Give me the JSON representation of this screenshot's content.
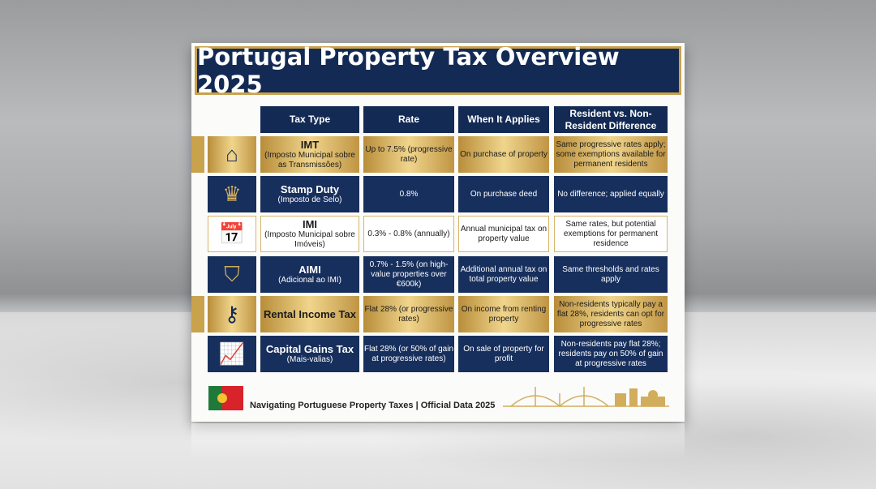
{
  "title": "Portugal Property Tax Overview 2025",
  "headers": [
    "Tax Type",
    "Rate",
    "When It Applies",
    "Resident vs. Non-Resident Difference"
  ],
  "rows": [
    {
      "style": "gold",
      "icon": "house-icon",
      "glyph": "⌂",
      "name": "IMT",
      "sub": "(Imposto Municipal sobre as Transmissões)",
      "rate": "Up to 7.5% (progressive rate)",
      "when": "On purchase of property",
      "diff": "Same progressive rates apply; some exemptions available for permanent residents"
    },
    {
      "style": "navy",
      "icon": "stamp-seal-icon",
      "glyph": "♛",
      "name": "Stamp Duty",
      "sub": "(Imposto de Selo)",
      "rate": "0.8%",
      "when": "On purchase deed",
      "diff": "No difference; applied equally"
    },
    {
      "style": "white",
      "icon": "calendar-check-icon",
      "glyph": "📅",
      "name": "IMI",
      "sub": "(Imposto Municipal sobre Imóveis)",
      "rate": "0.3% - 0.8% (annually)",
      "when": "Annual municipal tax on property value",
      "diff": "Same rates, but potential exemptions for permanent residence"
    },
    {
      "style": "navy",
      "icon": "shield-star-icon",
      "glyph": "⛉",
      "name": "AIMI",
      "sub": "(Adicional ao IMI)",
      "rate": "0.7% - 1.5% (on high-value properties over €600k)",
      "when": "Additional annual tax on total property value",
      "diff": "Same thresholds and rates apply"
    },
    {
      "style": "gold",
      "icon": "key-icon",
      "glyph": "⚷",
      "name": "Rental Income Tax",
      "sub": "",
      "rate": "Flat 28% (or progressive rates)",
      "when": "On income from renting property",
      "diff": "Non-residents typically pay a flat 28%, residents can opt for progressive rates"
    },
    {
      "style": "navy",
      "icon": "growth-chart-icon",
      "glyph": "📈",
      "name": "Capital Gains Tax",
      "sub": "(Mais-valias)",
      "rate": "Flat 28% (or 50% of gain at progressive rates)",
      "when": "On sale of property for profit",
      "diff": "Non-residents pay flat 28%; residents pay on 50% of gain at progressive rates"
    }
  ],
  "footer": "Navigating Portuguese Property Taxes | Official Data 2025",
  "colors": {
    "navy": "#132a54",
    "gold": "#c9a24c"
  }
}
